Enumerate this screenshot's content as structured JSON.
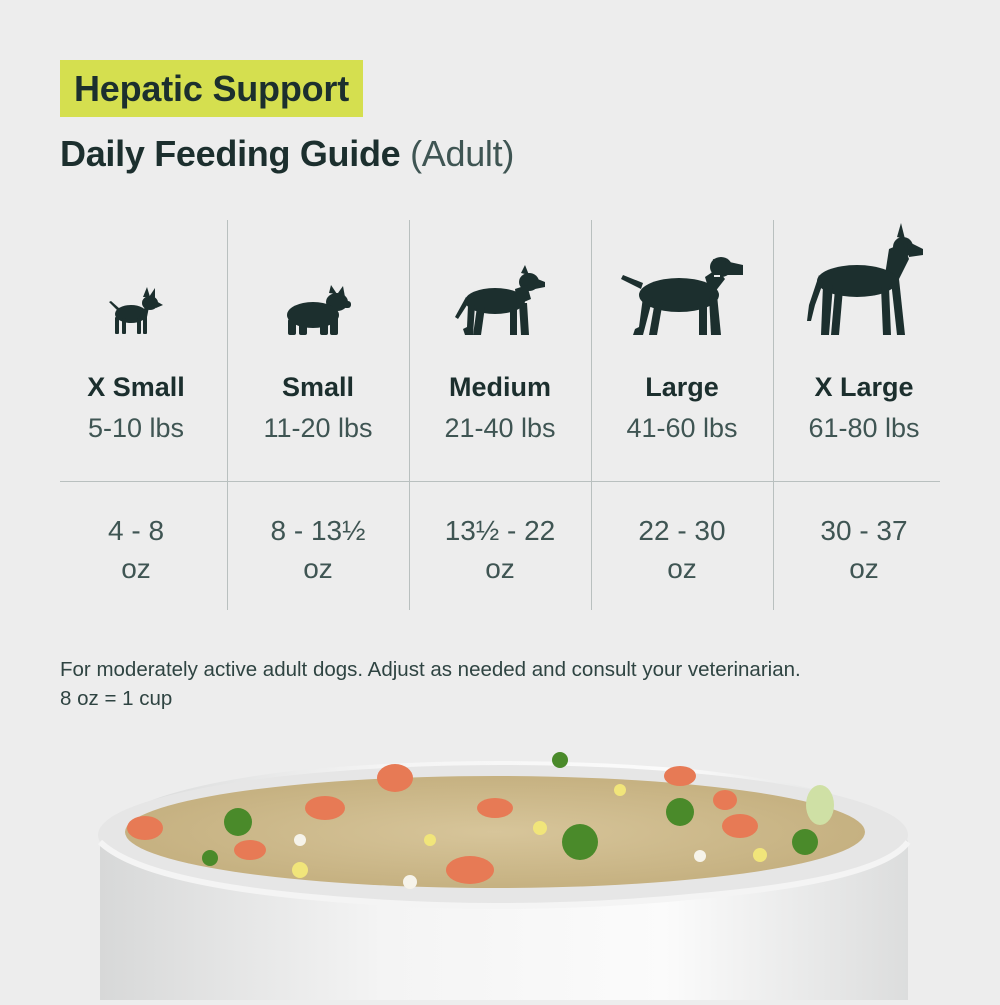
{
  "header": {
    "badge": "Hepatic Support",
    "title": "Daily Feeding Guide",
    "subtitle": "(Adult)"
  },
  "sizes": [
    {
      "icon": "chihuahua-icon",
      "name": "X Small",
      "weight": "5-10 lbs",
      "amount": "4 - 8",
      "unit": "oz"
    },
    {
      "icon": "french-bulldog-icon",
      "name": "Small",
      "weight": "11-20 lbs",
      "amount": "8 - 13½",
      "unit": "oz"
    },
    {
      "icon": "pit-bull-icon",
      "name": "Medium",
      "weight": "21-40 lbs",
      "amount": "13½ - 22",
      "unit": "oz"
    },
    {
      "icon": "labrador-icon",
      "name": "Large",
      "weight": "41-60 lbs",
      "amount": "22 - 30",
      "unit": "oz"
    },
    {
      "icon": "great-dane-icon",
      "name": "X Large",
      "weight": "61-80 lbs",
      "amount": "30 - 37",
      "unit": "oz"
    }
  ],
  "footer": {
    "note_line1": "For moderately active adult dogs. Adjust as needed and consult your veterinarian.",
    "note_line2": "8 oz = 1 cup"
  },
  "image": {
    "subject": "food-bowl-illustration"
  },
  "colors": {
    "accent": "#d5df4f",
    "text_dark": "#1c2f2e",
    "background": "#ededed"
  }
}
